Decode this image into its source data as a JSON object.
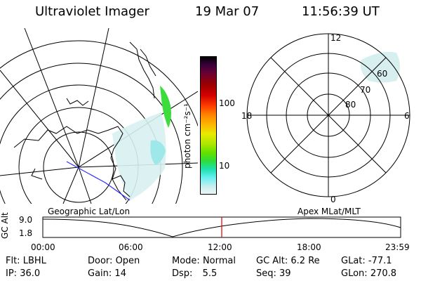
{
  "header": {
    "instrument": "Ultraviolet Imager",
    "date": "19 Mar 07",
    "time": "11:56:39 UT"
  },
  "left_map": {
    "caption": "Geographic Lat/Lon"
  },
  "right_map": {
    "caption": "Apex MLat/MLT",
    "mlt_labels": {
      "top": "12",
      "left": "18",
      "right": "6",
      "bottom": "0"
    },
    "lat_labels": [
      "60",
      "70",
      "80"
    ]
  },
  "colorbar": {
    "unit_label": "photon cm⁻²s⁻¹",
    "ticks": [
      "100",
      "10"
    ]
  },
  "altitude_plot": {
    "ylabel": "GC Alt",
    "ytick_top": "9.0",
    "ytick_bottom": "1.8",
    "xticks": [
      "00:00",
      "06:00",
      "12:00",
      "18:00",
      "23:59"
    ],
    "current_time_marker_fraction": 0.5
  },
  "status": {
    "filter_label": "Flt:",
    "filter_value": "LBHL",
    "ip_label": "IP:",
    "ip_value": "36.0",
    "door_label": "Door:",
    "door_value": "Open",
    "gain_label": "Gain:",
    "gain_value": "14",
    "mode_label": "Mode:",
    "mode_value": "Normal",
    "dsp_label": "Dsp:",
    "dsp_value": "5.5",
    "gcalt_label": "GC Alt:",
    "gcalt_value": "6.2 Re",
    "seq_label": "Seq:",
    "seq_value": "39",
    "glat_label": "GLat:",
    "glat_value": "-77.1",
    "glon_label": "GLon:",
    "glon_value": "270.8"
  },
  "colors": {
    "aurora_green": "#3ddc3d",
    "aurora_cyan": "#9fe8ea",
    "aurora_pale": "#d8efef",
    "marker_red": "#e00000",
    "track_blue": "#2c2cff"
  }
}
